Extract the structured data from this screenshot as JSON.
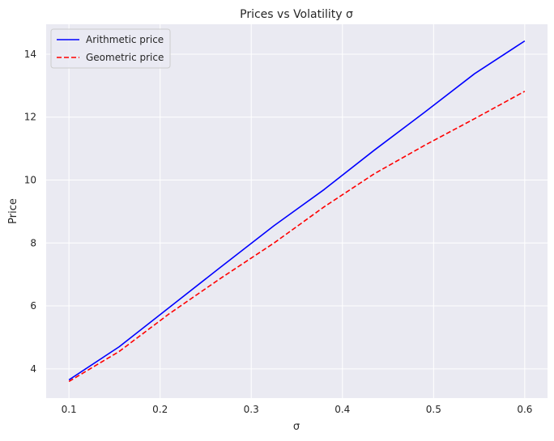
{
  "chart_data": {
    "type": "line",
    "title": "Prices vs Volatility σ",
    "xlabel": "σ",
    "ylabel": "Price",
    "xlim": [
      0.075,
      0.625
    ],
    "ylim": [
      3.07,
      14.95
    ],
    "xticks": [
      0.1,
      0.2,
      0.3,
      0.4,
      0.5,
      0.6
    ],
    "xtick_labels": [
      "0.1",
      "0.2",
      "0.3",
      "0.4",
      "0.5",
      "0.6"
    ],
    "yticks": [
      4,
      6,
      8,
      10,
      12,
      14
    ],
    "ytick_labels": [
      "4",
      "6",
      "8",
      "10",
      "12",
      "14"
    ],
    "grid": true,
    "legend_position": "top-left",
    "background_color": "#eaeaf2",
    "grid_color": "#ffffff",
    "series": [
      {
        "name": "Arithmetic price",
        "color": "#0000ff",
        "linestyle": "solid",
        "x": [
          0.1,
          0.155,
          0.21,
          0.265,
          0.325,
          0.38,
          0.435,
          0.49,
          0.545,
          0.6
        ],
        "y": [
          3.65,
          4.7,
          5.95,
          7.2,
          8.55,
          9.7,
          10.95,
          12.15,
          13.38,
          14.42
        ]
      },
      {
        "name": "Geometric price",
        "color": "#ff0000",
        "linestyle": "dashed",
        "x": [
          0.1,
          0.155,
          0.21,
          0.265,
          0.325,
          0.38,
          0.435,
          0.49,
          0.545,
          0.6
        ],
        "y": [
          3.6,
          4.55,
          5.75,
          6.85,
          8.0,
          9.15,
          10.2,
          11.1,
          11.95,
          12.82
        ]
      }
    ]
  }
}
